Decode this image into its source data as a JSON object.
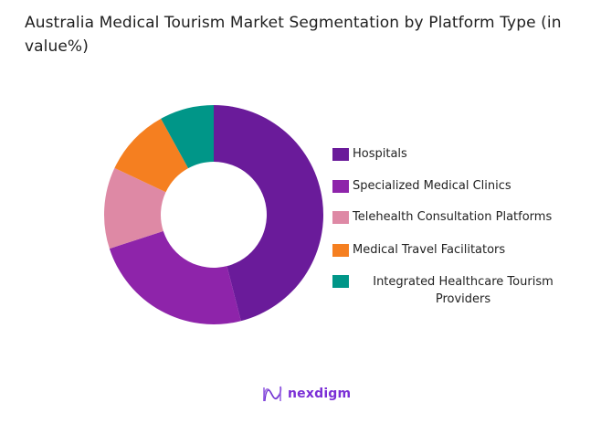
{
  "chart_data": {
    "type": "pie",
    "subtype": "donut",
    "title": "Australia Medical Tourism Market Segmentation by Platform Type (in value%)",
    "categories": [
      "Hospitals",
      "Specialized Medical Clinics",
      "Telehealth Consultation Platforms",
      "Medical Travel Facilitators",
      "Integrated Healthcare Tourism Providers"
    ],
    "values": [
      46,
      24,
      12,
      10,
      8
    ],
    "colors": [
      "#6a1b9a",
      "#8e24aa",
      "#de89a5",
      "#f57f20",
      "#009688"
    ],
    "legend_position": "right",
    "unit": "%"
  },
  "title": "Australia Medical Tourism Market Segmentation by Platform Type (in value%)",
  "legend": [
    {
      "label": "Hospitals",
      "color": "#6a1b9a"
    },
    {
      "label": "Specialized Medical Clinics",
      "color": "#8e24aa"
    },
    {
      "label": "Telehealth Consultation Platforms",
      "color": "#de89a5"
    },
    {
      "label": "Medical Travel Facilitators",
      "color": "#f57f20"
    },
    {
      "label": "Integrated Healthcare Tourism Providers",
      "color": "#009688"
    }
  ],
  "branding": {
    "logo_text": "nexdigm",
    "logo_color": "#7b2fd6"
  }
}
